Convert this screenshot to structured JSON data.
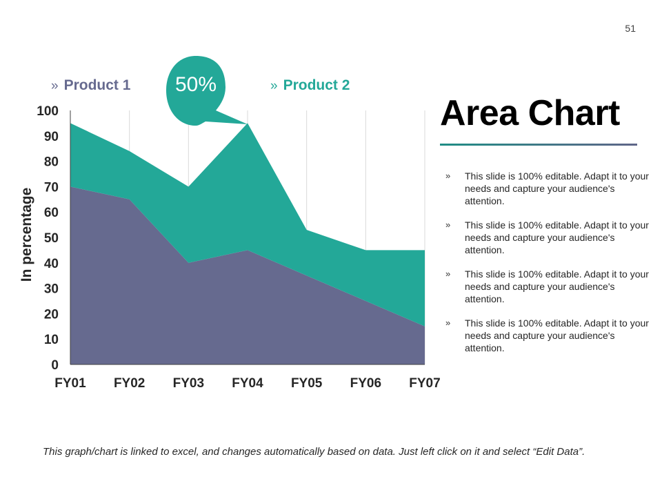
{
  "page": {
    "number": "51"
  },
  "legend": [
    {
      "marker": "»",
      "label": "Product 1",
      "color": "#666a8f"
    },
    {
      "marker": "»",
      "label": "Product 2",
      "color": "#23a898"
    }
  ],
  "callout": {
    "text": "50%",
    "color": "#23a898"
  },
  "title": "Area Chart",
  "bullets": [
    {
      "marker": "»",
      "text": "This slide is 100% editable. Adapt it to your needs and capture your audience's attention."
    },
    {
      "marker": "»",
      "text": "This slide is 100% editable. Adapt it to your needs and capture your audience's attention."
    },
    {
      "marker": "»",
      "text": "This slide is 100% editable. Adapt it to your needs and capture your audience's attention."
    },
    {
      "marker": "»",
      "text": "This slide is 100% editable. Adapt it to your needs and capture your audience's attention."
    }
  ],
  "footnote": "This graph/chart is linked to excel, and changes automatically based on data. Just left click on it and select “Edit Data”.",
  "chart_data": {
    "type": "area",
    "stacked": true,
    "categories": [
      "FY01",
      "FY02",
      "FY03",
      "FY04",
      "FY05",
      "FY06",
      "FY07"
    ],
    "series": [
      {
        "name": "Product 1",
        "color": "#666a8f",
        "values": [
          70,
          65,
          40,
          45,
          35,
          25,
          15
        ]
      },
      {
        "name": "Product 2",
        "color": "#23a898",
        "values": [
          25,
          19,
          30,
          50,
          18,
          20,
          30
        ]
      }
    ],
    "ylabel": "In percentage",
    "xlabel": "",
    "ylim": [
      0,
      100
    ],
    "yticks": [
      0,
      10,
      20,
      30,
      40,
      50,
      60,
      70,
      80,
      90,
      100
    ],
    "grid": "vertical"
  }
}
